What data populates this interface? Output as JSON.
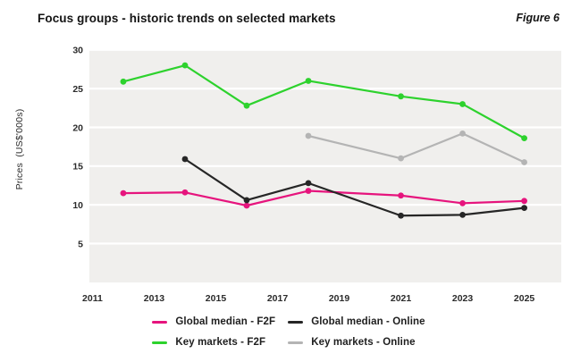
{
  "header": {
    "title": "Focus groups - historic trends on selected markets",
    "figure_label": "Figure 6"
  },
  "chart_data": {
    "type": "line",
    "title": "Focus groups - historic trends on selected markets",
    "ylabel": "Prices  (US$'000s)",
    "xlabel": "",
    "x": [
      2012,
      2014,
      2016,
      2018,
      2021,
      2023,
      2025
    ],
    "series": [
      {
        "name": "Global median - F2F",
        "color": "#e6147d",
        "values": [
          11.5,
          11.6,
          9.9,
          11.8,
          11.2,
          10.2,
          10.5
        ]
      },
      {
        "name": "Global median - Online",
        "color": "#262626",
        "values": [
          null,
          15.9,
          10.6,
          12.8,
          8.6,
          8.7,
          9.6
        ]
      },
      {
        "name": "Key markets - F2F",
        "color": "#2dd22d",
        "values": [
          25.9,
          28.0,
          22.8,
          26.0,
          24.0,
          23.0,
          18.6
        ]
      },
      {
        "name": "Key markets - Online",
        "color": "#b4b4b4",
        "values": [
          null,
          null,
          null,
          18.9,
          16.0,
          19.2,
          15.5
        ]
      }
    ],
    "x_ticks": [
      2011,
      2013,
      2015,
      2017,
      2019,
      2021,
      2023,
      2025
    ],
    "y_ticks": [
      5,
      10,
      15,
      20,
      25,
      30
    ],
    "xlim": [
      2010.9,
      2026.2
    ],
    "ylim": [
      0,
      30
    ],
    "grid": true,
    "legend_position": "bottom",
    "plot_bg": "#f0efed",
    "grid_color": "#ffffff"
  }
}
